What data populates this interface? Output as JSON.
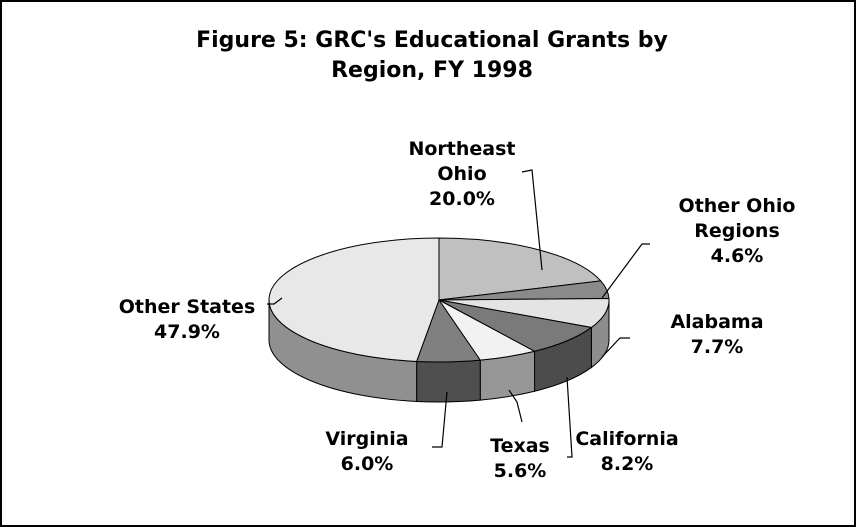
{
  "chart_data": {
    "type": "pie3d",
    "title": "Figure 5: GRC's Educational Grants by Region, FY 1998",
    "categories": [
      "Northeast Ohio",
      "Other Ohio Regions",
      "Alabama",
      "California",
      "Texas",
      "Virginia",
      "Other States"
    ],
    "values": [
      20.0,
      4.6,
      7.7,
      8.2,
      5.6,
      6.0,
      47.9
    ],
    "value_labels": [
      "20.0%",
      "4.6%",
      "7.7%",
      "8.2%",
      "5.6%",
      "6.0%",
      "47.9%"
    ],
    "colors": [
      "#c0c0c0",
      "#8a8a8a",
      "#e4e4e4",
      "#7a7a7a",
      "#f2f2f2",
      "#808080",
      "#e8e8e8"
    ]
  }
}
